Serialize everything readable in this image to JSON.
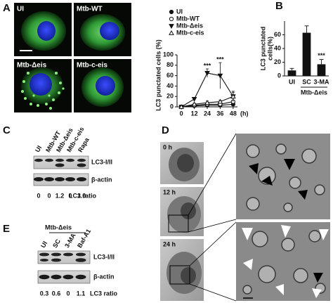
{
  "figure": {
    "panel_labels": [
      "A",
      "B",
      "C",
      "D",
      "E"
    ],
    "A": {
      "image_labels": [
        "UI",
        "Mtb-WT",
        "Mtb-Δeis",
        "Mtb-c-eis"
      ]
    },
    "C": {
      "lanes": [
        "UI",
        "Mtb-WT",
        "Mtb-Δeis",
        "Mtb-c-eis",
        "Rapa"
      ],
      "bands": [
        "LC3-I/II",
        "β-actin"
      ],
      "ratios": [
        "0",
        "0",
        "1.2",
        "0",
        "1.0"
      ],
      "ratio_label": "LC3 ratio"
    },
    "D": {
      "time_labels": [
        "0 h",
        "12 h",
        "24 h"
      ]
    },
    "E": {
      "group_label": "Mtb-Δeis",
      "lanes": [
        "UI",
        "SC",
        "3-MA",
        "Baf-A1"
      ],
      "bands": [
        "LC3-I/II",
        "β-actin"
      ],
      "ratios": [
        "0.3",
        "0.6",
        "0",
        "1.1"
      ],
      "ratio_label": "LC3 ratio"
    }
  },
  "chart_data": [
    {
      "type": "line",
      "y_label": "LC3 punctated cells (%)",
      "x_unit": "(h)",
      "x": [
        0,
        12,
        24,
        36,
        48
      ],
      "xlim": [
        -4,
        52
      ],
      "xticks": [
        0,
        12,
        24,
        36,
        48
      ],
      "ylim": [
        0,
        100
      ],
      "yticks": [
        0,
        20,
        40,
        60,
        80,
        100
      ],
      "series": [
        {
          "name": "UI",
          "color": "#111111",
          "marker": "circle-filled",
          "values": [
            0,
            2,
            3,
            3,
            5
          ],
          "errors": [
            0,
            1,
            1,
            1,
            2
          ]
        },
        {
          "name": "Mtb-WT",
          "color": "#111111",
          "marker": "circle-open",
          "values": [
            0,
            3,
            5,
            5,
            10
          ],
          "errors": [
            0,
            1,
            2,
            2,
            3
          ]
        },
        {
          "name": "Mtb-Δeis",
          "color": "#111111",
          "marker": "triangle-down-filled",
          "values": [
            0,
            15,
            65,
            60,
            20
          ],
          "errors": [
            0,
            3,
            8,
            25,
            10
          ]
        },
        {
          "name": "Mtb-c-eis",
          "color": "#111111",
          "marker": "triangle-up-open",
          "values": [
            0,
            5,
            8,
            10,
            20
          ],
          "errors": [
            0,
            2,
            3,
            3,
            8
          ]
        }
      ],
      "annotations": [
        {
          "text": "***",
          "x": 24
        },
        {
          "text": "***",
          "x": 36
        }
      ]
    },
    {
      "type": "bar",
      "y_label": [
        "LC3 punctated",
        "cells(%)"
      ],
      "categories": [
        "UI",
        "SC",
        "3-MA"
      ],
      "values": [
        8,
        63,
        17
      ],
      "errors": [
        3,
        10,
        7
      ],
      "color": "#111111",
      "group_label": "Mtb-Δeis",
      "ylim": [
        0,
        80
      ],
      "yticks": [
        0,
        20,
        40,
        60
      ],
      "annotations": [
        {
          "text": "***",
          "category": "3-MA"
        }
      ]
    }
  ]
}
